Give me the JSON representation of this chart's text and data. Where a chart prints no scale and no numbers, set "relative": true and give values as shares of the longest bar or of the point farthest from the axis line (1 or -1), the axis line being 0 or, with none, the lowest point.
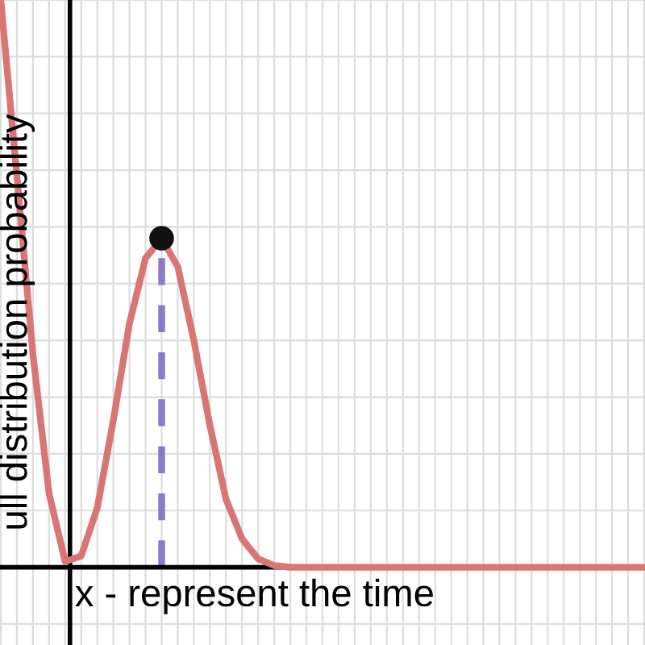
{
  "chart_data": {
    "type": "line",
    "relative": true,
    "xlabel": "x - represent the time",
    "ylabel": "ull distribution probability",
    "grid": true,
    "categories": [
      null,
      null,
      null,
      null,
      null,
      null,
      null,
      null,
      null,
      null,
      null,
      null,
      null,
      null,
      null,
      null,
      null,
      null,
      null,
      null,
      null,
      null,
      null,
      null,
      null,
      null,
      null,
      null,
      null,
      null,
      null,
      null,
      null,
      null,
      null,
      null,
      null,
      null,
      null,
      null,
      null
    ],
    "series": [
      {
        "color": "#d97572",
        "values": [
          1.0,
          0.69,
          0.375,
          0.13,
          0.01,
          0.02,
          0.105,
          0.26,
          0.43,
          0.545,
          0.58,
          0.53,
          0.4,
          0.25,
          0.12,
          0.05,
          0.015,
          0.003,
          0,
          0,
          0,
          0,
          0,
          0,
          0,
          0,
          0,
          0,
          0,
          0,
          0,
          0,
          0,
          0,
          0,
          0,
          0,
          0,
          0,
          0,
          0
        ]
      }
    ]
  }
}
